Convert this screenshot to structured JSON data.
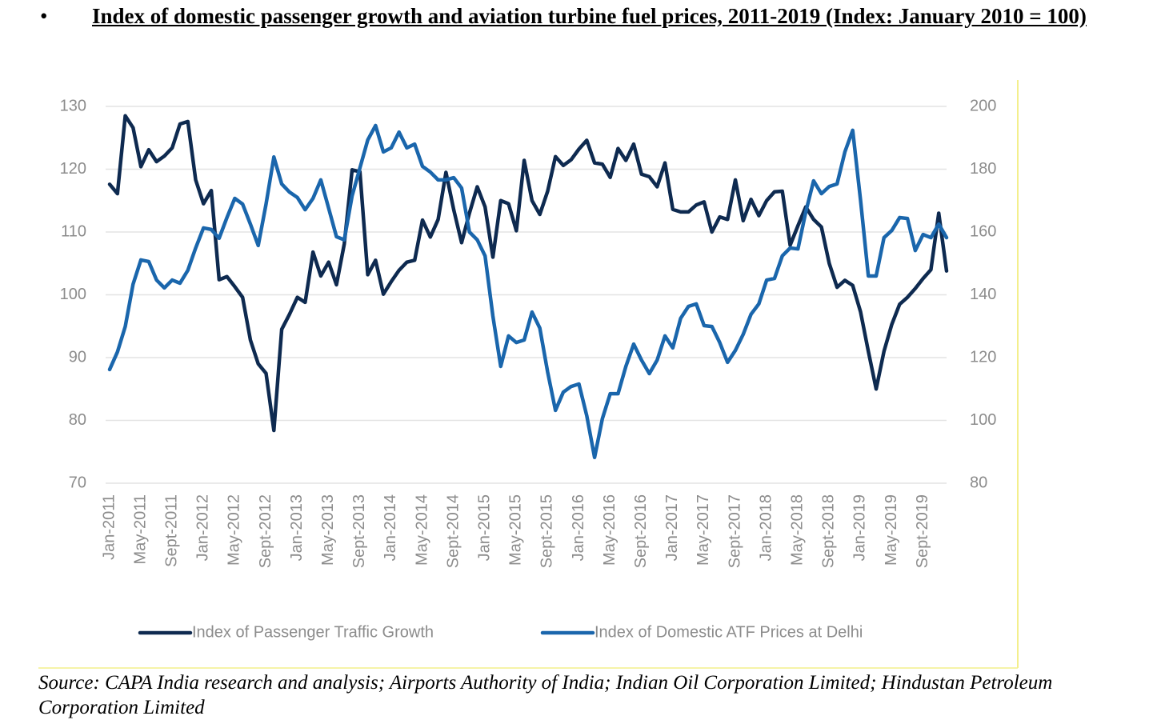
{
  "chart_data": {
    "type": "line",
    "title": "Index of domestic passenger growth and aviation turbine fuel prices, 2011-2019 (Index: January 2010 = 100)",
    "source": "Source: CAPA India research and analysis; Airports Authority of India; Indian Oil Corporation Limited; Hindustan Petroleum Corporation Limited",
    "categories": [
      "Jan-2011",
      null,
      null,
      null,
      "May-2011",
      null,
      null,
      null,
      "Sept-2011",
      null,
      null,
      null,
      "Jan-2012",
      null,
      null,
      null,
      "May-2012",
      null,
      null,
      null,
      "Sept-2012",
      null,
      null,
      null,
      "Jan-2013",
      null,
      null,
      null,
      "May-2013",
      null,
      null,
      null,
      "Sept-2013",
      null,
      null,
      null,
      "Jan-2014",
      null,
      null,
      null,
      "May-2014",
      null,
      null,
      null,
      "Sept-2014",
      null,
      null,
      null,
      "Jan-2015",
      null,
      null,
      null,
      "May-2015",
      null,
      null,
      null,
      "Sept-2015",
      null,
      null,
      null,
      "Jan-2016",
      null,
      null,
      null,
      "May-2016",
      null,
      null,
      null,
      "Sept-2016",
      null,
      null,
      null,
      "Jan-2017",
      null,
      null,
      null,
      "May-2017",
      null,
      null,
      null,
      "Sept-2017",
      null,
      null,
      null,
      "Jan-2018",
      null,
      null,
      null,
      "May-2018",
      null,
      null,
      null,
      "Sept-2018",
      null,
      null,
      null,
      "Jan-2019",
      null,
      null,
      null,
      "May-2019",
      null,
      null,
      null,
      "Sept-2019",
      null,
      null,
      null
    ],
    "series": [
      {
        "name": "Index of Passenger Traffic Growth",
        "color": "#0e2a50",
        "axis": "y",
        "values": [
          117.6,
          116.1,
          128.5,
          126.6,
          120.4,
          123.1,
          121.2,
          122.1,
          123.4,
          127.2,
          127.6,
          118.3,
          114.5,
          116.6,
          102.4,
          102.9,
          101.3,
          99.6,
          92.8,
          89.0,
          87.5,
          78.4,
          94.5,
          96.9,
          99.6,
          98.8,
          106.8,
          103.0,
          105.2,
          101.6,
          108.1,
          119.9,
          119.6,
          103.2,
          105.5,
          100.1,
          102.1,
          103.9,
          105.2,
          105.5,
          111.9,
          109.2,
          112.0,
          119.5,
          113.5,
          108.3,
          113.0,
          117.2,
          114.0,
          106.0,
          115.0,
          114.5,
          110.2,
          121.4,
          115.0,
          112.8,
          116.5,
          122.0,
          120.6,
          121.5,
          123.2,
          124.6,
          121.0,
          120.8,
          118.7,
          123.3,
          121.4,
          124.0,
          119.2,
          118.8,
          117.2,
          121.0,
          113.6,
          113.2,
          113.2,
          114.3,
          114.8,
          110.0,
          112.4,
          112.0,
          118.3,
          111.8,
          115.2,
          112.6,
          115.0,
          116.4,
          116.5,
          107.9,
          111.0,
          114.0,
          112.0,
          110.8,
          105.0,
          101.2,
          102.3,
          101.5,
          97.3,
          91.0,
          85.0,
          91.0,
          95.3,
          98.5,
          99.6,
          101.0,
          102.6,
          104.0,
          113.0,
          103.8
        ]
      },
      {
        "name": "Index of Domestic ATF Prices at Delhi",
        "color": "#1a66ac",
        "axis": "y2",
        "values": [
          116.2,
          121.8,
          129.9,
          143.4,
          151.1,
          150.6,
          144.7,
          142.2,
          144.7,
          143.7,
          147.8,
          154.9,
          161.3,
          160.8,
          158.0,
          164.6,
          170.7,
          168.9,
          162.5,
          155.7,
          168.9,
          183.9,
          175.3,
          172.7,
          171.0,
          167.1,
          170.7,
          176.6,
          167.6,
          158.5,
          157.5,
          171.5,
          180.4,
          189.3,
          193.9,
          185.5,
          186.8,
          191.8,
          186.8,
          188.0,
          180.9,
          179.1,
          176.6,
          176.6,
          177.3,
          174.0,
          160.0,
          157.5,
          152.4,
          133.2,
          117.2,
          126.9,
          124.8,
          125.6,
          134.5,
          129.4,
          115.4,
          103.2,
          109.0,
          110.8,
          111.6,
          101.5,
          88.2,
          100.6,
          108.5,
          108.5,
          117.2,
          124.3,
          119.2,
          114.9,
          119.2,
          126.9,
          123.1,
          132.5,
          136.3,
          137.1,
          130.2,
          129.9,
          124.8,
          118.5,
          122.3,
          127.4,
          133.8,
          137.1,
          144.7,
          145.2,
          152.4,
          154.9,
          154.6,
          166.4,
          176.3,
          172.2,
          174.5,
          175.3,
          185.5,
          192.4,
          170.2,
          146.0,
          146.0,
          158.2,
          160.5,
          164.6,
          164.3,
          154.1,
          159.2,
          158.2,
          162.5,
          158.2
        ]
      }
    ],
    "ylim": [
      70,
      130
    ],
    "yticks": [
      70,
      80,
      90,
      100,
      110,
      120,
      130
    ],
    "y2lim": [
      80,
      200
    ],
    "y2ticks": [
      80,
      100,
      120,
      140,
      160,
      180,
      200
    ],
    "grid": true,
    "legend": "bottom"
  }
}
